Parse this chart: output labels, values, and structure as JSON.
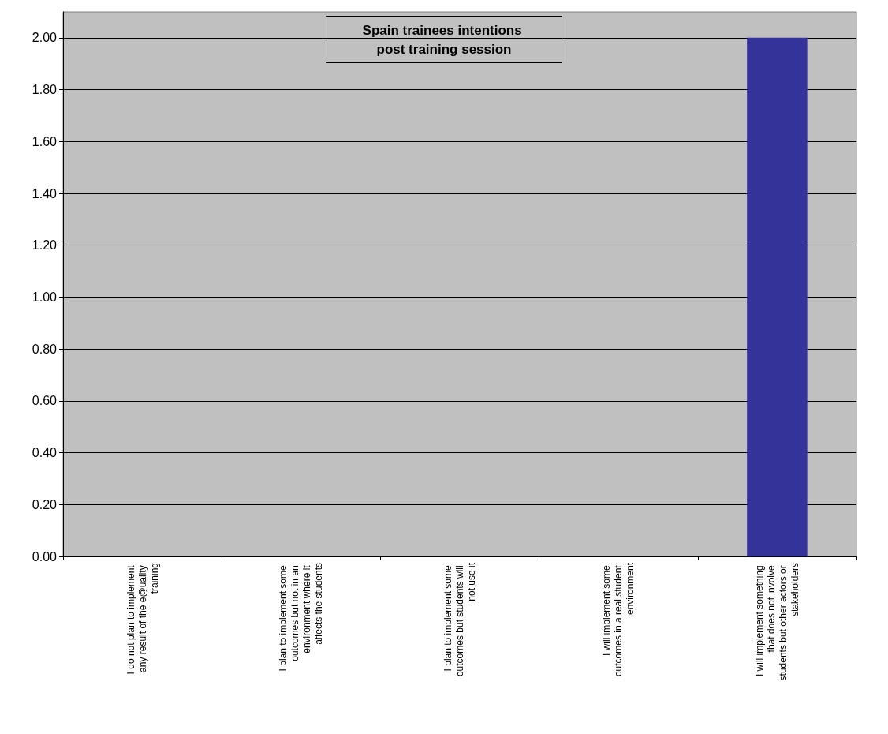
{
  "chart_data": {
    "type": "bar",
    "title": "Spain trainees intentions post training session",
    "categories": [
      "I do not plan to implement any result of the e@uality training",
      "I plan to implement some outcomes but not in an environment where it affects the students",
      "I plan to implement some outcomes but students will not use it",
      "I will implement some outcomes in a real student environment",
      "I will implement something that does not involve students but other actors or stakeholders"
    ],
    "values": [
      0,
      0,
      0,
      0,
      2
    ],
    "color": "#333399",
    "ylim": [
      0,
      2.1
    ],
    "yticks": [
      {
        "value": 0,
        "label": "0.00"
      },
      {
        "value": 0.2,
        "label": "0.20"
      },
      {
        "value": 0.4,
        "label": "0.40"
      },
      {
        "value": 0.6,
        "label": "0.60"
      },
      {
        "value": 0.8,
        "label": "0.80"
      },
      {
        "value": 1,
        "label": "1.00"
      },
      {
        "value": 1.2,
        "label": "1.20"
      },
      {
        "value": 1.4,
        "label": "1.40"
      },
      {
        "value": 1.6,
        "label": "1.60"
      },
      {
        "value": 1.8,
        "label": "1.80"
      },
      {
        "value": 2,
        "label": "2.00"
      }
    ],
    "grid": "y"
  }
}
